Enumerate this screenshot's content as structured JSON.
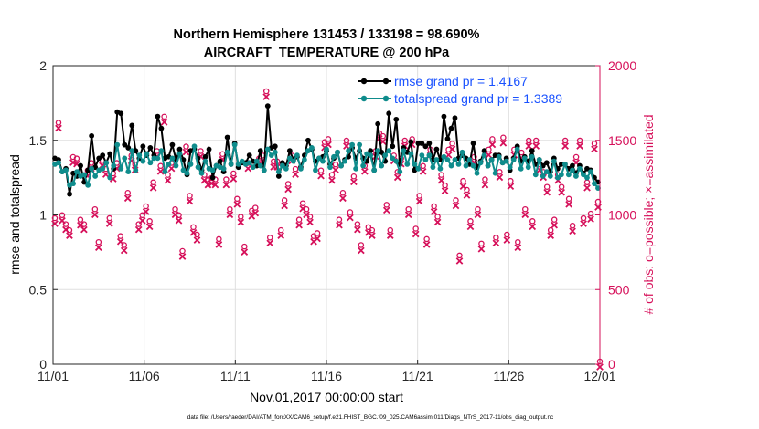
{
  "chart_data": {
    "type": "line",
    "title": "Northern Hemisphere 131453 / 133198 = 98.690%",
    "subtitle": "AIRCRAFT_TEMPERATURE @ 200 hPa",
    "xlabel": "Nov.01,2017 00:00:00 start",
    "ylabel": "rmse and totalspread",
    "y2label": "# of obs: o=possible; ×=assimilated",
    "xlim": [
      0,
      30
    ],
    "ylim": [
      0,
      2
    ],
    "y2lim": [
      0,
      2000
    ],
    "xticks": [
      0,
      5,
      10,
      15,
      20,
      25,
      30
    ],
    "xtick_labels": [
      "11/01",
      "11/06",
      "11/11",
      "11/16",
      "11/21",
      "11/26",
      "12/01"
    ],
    "yticks": [
      0,
      0.5,
      1,
      1.5,
      2
    ],
    "ytick_labels": [
      "0",
      "0.5",
      "1",
      "1.5",
      "2"
    ],
    "y2ticks": [
      0,
      500,
      1000,
      1500,
      2000
    ],
    "y2tick_labels": [
      "0",
      "500",
      "1000",
      "1500",
      "2000"
    ],
    "grid": true,
    "legend_position": "top-right",
    "colors": {
      "rmse": "#000000",
      "spread": "#0f8c8c",
      "obs": "#d6105a",
      "legend_text": "#1a52ff",
      "right_axis": "#d6105a"
    },
    "series": [
      {
        "name": "rmse grand pr = 1.4167",
        "key": "rmse",
        "values": [
          1.38,
          1.37,
          1.29,
          1.31,
          1.14,
          1.28,
          1.26,
          1.33,
          1.22,
          1.3,
          1.53,
          1.32,
          1.38,
          1.4,
          1.35,
          1.41,
          1.31,
          1.69,
          1.68,
          1.47,
          1.45,
          1.6,
          1.43,
          1.38,
          1.46,
          1.4,
          1.45,
          1.4,
          1.66,
          1.58,
          1.38,
          1.39,
          1.47,
          1.37,
          1.44,
          1.37,
          1.27,
          1.43,
          1.44,
          1.38,
          1.3,
          1.39,
          1.44,
          1.25,
          1.33,
          1.36,
          1.29,
          1.52,
          1.34,
          1.48,
          1.32,
          1.35,
          1.35,
          1.4,
          1.36,
          1.33,
          1.43,
          1.3,
          1.73,
          1.45,
          1.46,
          1.26,
          1.35,
          1.33,
          1.43,
          1.37,
          1.39,
          1.32,
          1.4,
          1.5,
          1.44,
          1.36,
          1.38,
          1.39,
          1.43,
          1.34,
          1.38,
          1.42,
          1.33,
          1.37,
          1.39,
          1.45,
          1.38,
          1.43,
          1.38,
          1.36,
          1.43,
          1.3,
          1.61,
          1.42,
          1.36,
          1.68,
          1.46,
          1.64,
          1.34,
          1.45,
          1.42,
          1.49,
          1.3,
          1.48,
          1.48,
          1.46,
          1.48,
          1.37,
          1.44,
          1.37,
          1.66,
          1.51,
          1.58,
          1.65,
          1.38,
          1.4,
          1.38,
          1.34,
          1.48,
          1.32,
          1.36,
          1.43,
          1.33,
          1.37,
          1.4,
          1.4,
          1.35,
          1.38,
          1.3,
          1.38,
          1.46,
          1.36,
          1.39,
          1.36,
          1.43,
          1.34,
          1.37,
          1.33,
          1.35,
          1.29,
          1.38,
          1.31,
          1.34,
          1.34,
          1.31,
          1.33,
          1.28,
          1.33,
          1.28,
          1.31,
          1.3,
          1.25,
          1.22
        ],
        "style": "line-with-filled-circles"
      },
      {
        "name": "totalspread grand pr = 1.3389",
        "key": "spread",
        "values": [
          1.34,
          1.35,
          1.29,
          1.3,
          1.2,
          1.21,
          1.29,
          1.26,
          1.27,
          1.2,
          1.31,
          1.26,
          1.3,
          1.31,
          1.35,
          1.25,
          1.33,
          1.47,
          1.31,
          1.38,
          1.29,
          1.43,
          1.3,
          1.4,
          1.36,
          1.41,
          1.35,
          1.38,
          1.38,
          1.43,
          1.29,
          1.34,
          1.38,
          1.33,
          1.41,
          1.3,
          1.28,
          1.34,
          1.46,
          1.32,
          1.28,
          1.36,
          1.31,
          1.3,
          1.33,
          1.32,
          1.31,
          1.42,
          1.34,
          1.47,
          1.34,
          1.36,
          1.34,
          1.35,
          1.32,
          1.36,
          1.33,
          1.3,
          1.44,
          1.4,
          1.42,
          1.29,
          1.33,
          1.31,
          1.38,
          1.36,
          1.4,
          1.31,
          1.37,
          1.43,
          1.45,
          1.3,
          1.38,
          1.36,
          1.44,
          1.32,
          1.39,
          1.42,
          1.33,
          1.36,
          1.43,
          1.47,
          1.31,
          1.47,
          1.33,
          1.41,
          1.4,
          1.3,
          1.43,
          1.33,
          1.4,
          1.43,
          1.38,
          1.36,
          1.29,
          1.43,
          1.34,
          1.41,
          1.34,
          1.31,
          1.4,
          1.37,
          1.4,
          1.32,
          1.37,
          1.31,
          1.39,
          1.37,
          1.33,
          1.37,
          1.34,
          1.42,
          1.33,
          1.37,
          1.33,
          1.28,
          1.35,
          1.4,
          1.33,
          1.37,
          1.28,
          1.39,
          1.35,
          1.36,
          1.32,
          1.37,
          1.44,
          1.31,
          1.38,
          1.32,
          1.39,
          1.27,
          1.37,
          1.26,
          1.29,
          1.26,
          1.36,
          1.25,
          1.27,
          1.34,
          1.27,
          1.3,
          1.26,
          1.31,
          1.27,
          1.25,
          1.29,
          1.21,
          1.18
        ],
        "style": "line-with-filled-circles"
      },
      {
        "name": "obs possible",
        "key": "obs",
        "axis": "right",
        "values": [
          960,
          1600,
          980,
          920,
          880,
          1370,
          1360,
          950,
          920,
          1280,
          1330,
          1020,
          800,
          1350,
          1290,
          960,
          1260,
          1330,
          840,
          780,
          1130,
          1380,
          1320,
          920,
          980,
          1040,
          940,
          1200,
          1410,
          1310,
          1640,
          1250,
          1330,
          1020,
          980,
          740,
          1440,
          1110,
          900,
          850,
          1410,
          1250,
          1220,
          1230,
          1220,
          820,
          1390,
          1220,
          1020,
          1260,
          1090,
          970,
          770,
          1330,
          1010,
          1030,
          1360,
          1380,
          1810,
          830,
          1340,
          1340,
          880,
          1080,
          1190,
          1380,
          1290,
          950,
          1060,
          1020,
          970,
          840,
          860,
          1280,
          1470,
          1490,
          1250,
          1320,
          950,
          1130,
          1480,
          1000,
          1240,
          920,
          780,
          1310,
          900,
          880,
          1410,
          1530,
          1510,
          1050,
          880,
          1380,
          1270,
          1360,
          1480,
          1020,
          1490,
          890,
          1110,
          1310,
          820,
          1420,
          1040,
          970,
          1250,
          1180,
          1420,
          1460,
          1080,
          710,
          1210,
          1150,
          940,
          1370,
          1020,
          790,
          1220,
          1420,
          1490,
          830,
          1270,
          1500,
          850,
          1210,
          1420,
          800,
          1400,
          1020,
          1480,
          940,
          1480,
          1320,
          1270,
          1170,
          880,
          950,
          1250,
          1170,
          1480,
          1090,
          910,
          1370,
          1480,
          960,
          1200,
          990,
          1460,
          1070,
          0
        ]
      }
    ],
    "footnote": "data file: /Users/raeder/DAI/ATM_forcXX/CAM6_setup/f.e21.FHIST_BGC.f09_025.CAM6assim.011/Diags_NTrS_2017-11/obs_diag_output.nc"
  }
}
